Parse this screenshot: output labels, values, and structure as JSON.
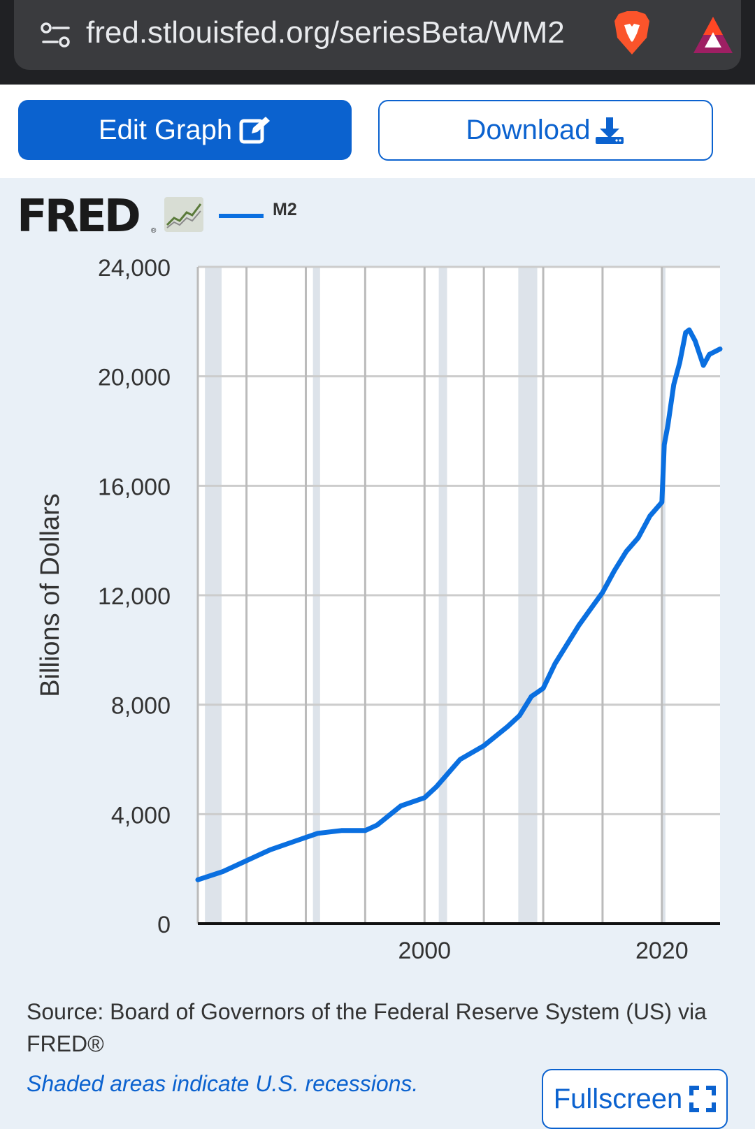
{
  "browser": {
    "url": "fred.stlouisfed.org/seriesBeta/WM2"
  },
  "toolbar": {
    "edit_label": "Edit Graph",
    "download_label": "Download",
    "fullscreen_label": "Fullscreen"
  },
  "colors": {
    "accent": "#0b62cf",
    "series": "#0a6fe0",
    "recession": "#dde3ea",
    "background": "#e9f0f7"
  },
  "logo": {
    "text": "FRED",
    "reg": "®"
  },
  "footer": {
    "source": "Source: Board of Governors of the Federal Reserve System (US) via FRED®",
    "shaded_note": "Shaded areas indicate U.S. recessions."
  },
  "chart_data": {
    "type": "line",
    "legend": [
      "M2"
    ],
    "legend_position": "top-left",
    "ylabel": "Billions of Dollars",
    "ylim": [
      0,
      24000
    ],
    "xlim": [
      1980.9,
      2024.9
    ],
    "yticks": [
      {
        "value": 0,
        "label": "0"
      },
      {
        "value": 4000,
        "label": "4,000"
      },
      {
        "value": 8000,
        "label": "8,000"
      },
      {
        "value": 12000,
        "label": "12,000"
      },
      {
        "value": 16000,
        "label": "16,000"
      },
      {
        "value": 20000,
        "label": "20,000"
      },
      {
        "value": 24000,
        "label": "24,000"
      }
    ],
    "xticks": [
      {
        "value": 2000,
        "label": "2000"
      },
      {
        "value": 2020,
        "label": "2020"
      }
    ],
    "grid": true,
    "recessions": [
      [
        1981.5,
        1982.9
      ],
      [
        1990.6,
        1991.2
      ],
      [
        2001.2,
        2001.9
      ],
      [
        2007.9,
        2009.5
      ],
      [
        2020.1,
        2020.3
      ]
    ],
    "series": [
      {
        "name": "M2",
        "x": [
          1980.9,
          1983,
          1985,
          1987,
          1989,
          1991,
          1993,
          1995,
          1996,
          1998,
          2000,
          2001,
          2002,
          2003,
          2005,
          2007,
          2008,
          2009,
          2010,
          2011,
          2012,
          2013,
          2014,
          2015,
          2016,
          2017,
          2018,
          2019,
          2020.0,
          2020.2,
          2020.5,
          2021.0,
          2021.5,
          2022.0,
          2022.3,
          2022.8,
          2023.5,
          2024.0,
          2024.9
        ],
        "y": [
          1600,
          1900,
          2300,
          2700,
          3000,
          3300,
          3400,
          3400,
          3600,
          4300,
          4600,
          5000,
          5500,
          6000,
          6500,
          7200,
          7600,
          8300,
          8600,
          9500,
          10200,
          10900,
          11500,
          12100,
          12900,
          13600,
          14100,
          14900,
          15400,
          17500,
          18200,
          19700,
          20500,
          21600,
          21700,
          21300,
          20400,
          20800,
          21000
        ]
      }
    ]
  }
}
